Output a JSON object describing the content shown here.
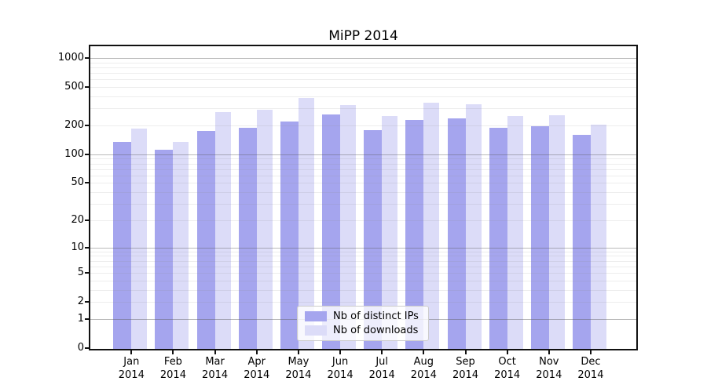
{
  "chart_data": {
    "type": "bar",
    "title": "MiPP 2014",
    "categories": [
      "Jan 2014",
      "Feb 2014",
      "Mar 2014",
      "Apr 2014",
      "May 2014",
      "Jun 2014",
      "Jul 2014",
      "Aug 2014",
      "Sep 2014",
      "Oct 2014",
      "Nov 2014",
      "Dec 2014"
    ],
    "series": [
      {
        "name": "Nb of distinct IPs",
        "color": "#a5a5ee",
        "values": [
          135,
          112,
          175,
          190,
          220,
          261,
          180,
          228,
          238,
          189,
          196,
          160
        ]
      },
      {
        "name": "Nb of downloads",
        "color": "#dcdcf8",
        "values": [
          185,
          134,
          275,
          290,
          385,
          326,
          250,
          343,
          334,
          250,
          254,
          205
        ]
      }
    ],
    "y_axis": {
      "scale": "log10(value+1)",
      "ticks": [
        0,
        1,
        2,
        5,
        10,
        20,
        50,
        100,
        200,
        500,
        1000
      ],
      "major_gridlines": [
        1,
        10,
        100,
        1000
      ],
      "range": [
        0,
        1320
      ]
    },
    "legend_position": "lower center inside plot",
    "grid": "on"
  },
  "colors": {
    "background": "#ffffff",
    "axis": "#111111",
    "text": "#000000",
    "grid_major": "#bcbcbc",
    "grid_minor": "#ececec"
  }
}
